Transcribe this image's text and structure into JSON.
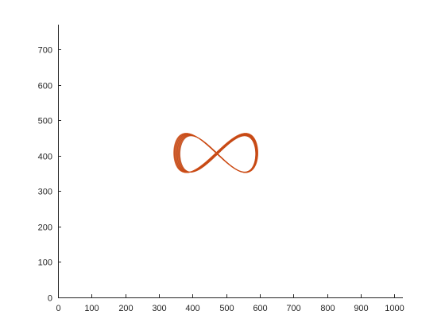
{
  "chart_data": {
    "type": "line",
    "title": "",
    "xlabel": "",
    "ylabel": "",
    "xlim": [
      0,
      1025
    ],
    "ylim": [
      0,
      770
    ],
    "xticks": [
      0,
      100,
      200,
      300,
      400,
      500,
      600,
      700,
      800,
      900,
      1000
    ],
    "yticks": [
      0,
      100,
      200,
      300,
      400,
      500,
      600,
      700
    ],
    "grid": false,
    "legend": "none",
    "box": "off",
    "series": [
      {
        "color": "#d95319",
        "edge_color": "#a33a12",
        "style": "figure-eight trajectory (lemniscate), many overlapping passes",
        "center": [
          475,
          405
        ],
        "x_range": [
          350,
          600
        ],
        "y_range": [
          350,
          470
        ],
        "passes": 14
      }
    ]
  }
}
